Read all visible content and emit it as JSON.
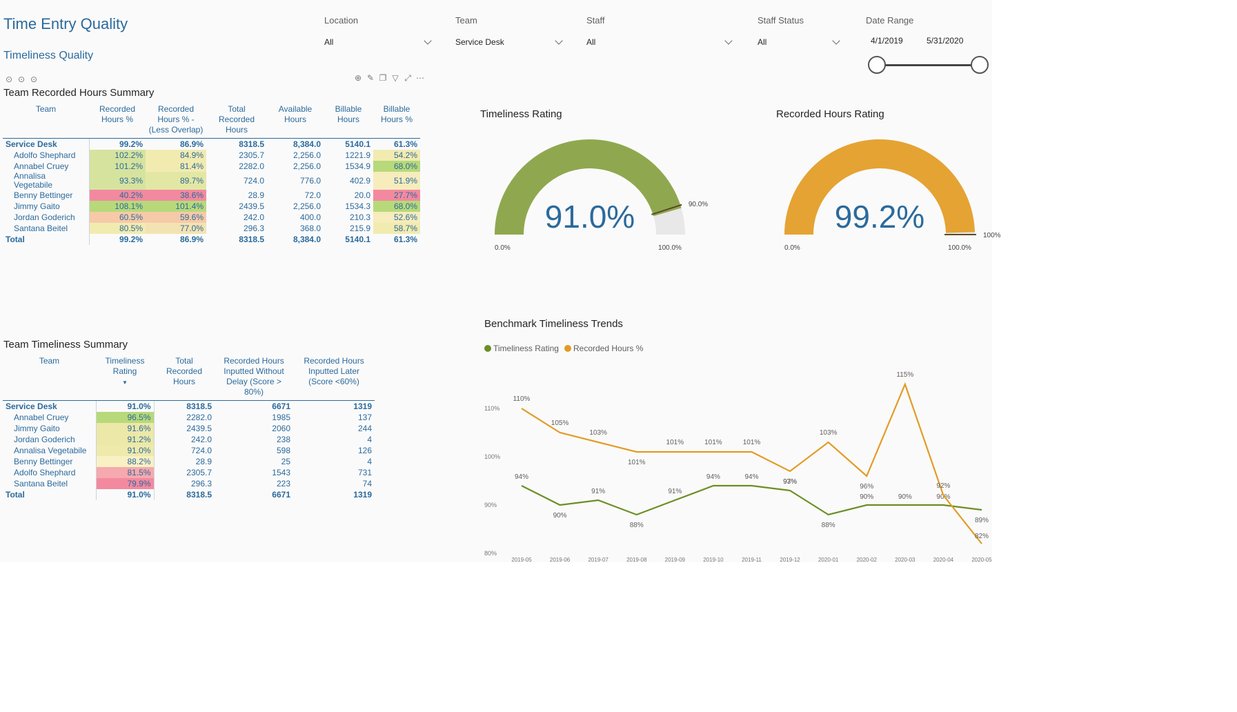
{
  "page": {
    "title": "Time Entry Quality",
    "subtitle": "Timeliness Quality"
  },
  "slicers": {
    "location": {
      "label": "Location",
      "value": "All"
    },
    "team": {
      "label": "Team",
      "value": "Service Desk"
    },
    "staff": {
      "label": "Staff",
      "value": "All"
    },
    "staff_status": {
      "label": "Staff Status",
      "value": "All"
    },
    "date_range": {
      "label": "Date Range",
      "start": "4/1/2019",
      "end": "5/31/2020"
    }
  },
  "recorded_summary": {
    "title": "Team Recorded Hours Summary",
    "headers": [
      "Team",
      "Recorded Hours %",
      "Recorded Hours % - (Less Overlap)",
      "Total Recorded Hours",
      "Available Hours",
      "Billable Hours",
      "Billable Hours %"
    ],
    "group": {
      "name": "Service Desk",
      "cells": [
        "99.2%",
        "86.9%",
        "8318.5",
        "8,384.0",
        "5140.1",
        "61.3%"
      ]
    },
    "rows": [
      {
        "name": "Adolfo Shephard",
        "cells": [
          "102.2%",
          "84.9%",
          "2305.7",
          "2,256.0",
          "1221.9",
          "54.2%"
        ],
        "colors": [
          "#d6e39e",
          "#f2ebb0",
          "",
          "",
          "",
          "#f2ebb0"
        ]
      },
      {
        "name": "Annabel Cruey",
        "cells": [
          "101.2%",
          "81.4%",
          "2282.0",
          "2,256.0",
          "1534.9",
          "68.0%"
        ],
        "colors": [
          "#d6e39e",
          "#f2ebb0",
          "",
          "",
          "",
          "#b7d97a"
        ]
      },
      {
        "name": "Annalisa Vegetabile",
        "cells": [
          "93.3%",
          "89.7%",
          "724.0",
          "776.0",
          "402.9",
          "51.9%"
        ],
        "colors": [
          "#d6e39e",
          "#e3e7a4",
          "",
          "",
          "",
          "#f6ecbc"
        ]
      },
      {
        "name": "Benny Bettinger",
        "cells": [
          "40.2%",
          "38.6%",
          "28.9",
          "72.0",
          "20.0",
          "27.7%"
        ],
        "colors": [
          "#f3899f",
          "#f3899f",
          "",
          "",
          "",
          "#f3899f"
        ]
      },
      {
        "name": "Jimmy Gaito",
        "cells": [
          "108.1%",
          "101.4%",
          "2439.5",
          "2,256.0",
          "1534.3",
          "68.0%"
        ],
        "colors": [
          "#b7d97a",
          "#b7d97a",
          "",
          "",
          "",
          "#b7d97a"
        ]
      },
      {
        "name": "Jordan Goderich",
        "cells": [
          "60.5%",
          "59.6%",
          "242.0",
          "400.0",
          "210.3",
          "52.6%"
        ],
        "colors": [
          "#f6caa8",
          "#f6caa8",
          "",
          "",
          "",
          "#f6ecbc"
        ]
      },
      {
        "name": "Santana Beitel",
        "cells": [
          "80.5%",
          "77.0%",
          "296.3",
          "368.0",
          "215.9",
          "58.7%"
        ],
        "colors": [
          "#f2ebb0",
          "#f4e3b2",
          "",
          "",
          "",
          "#f2ebb0"
        ]
      }
    ],
    "total": {
      "name": "Total",
      "cells": [
        "99.2%",
        "86.9%",
        "8318.5",
        "8,384.0",
        "5140.1",
        "61.3%"
      ]
    }
  },
  "timeliness_summary": {
    "title": "Team Timeliness Summary",
    "headers": [
      "Team",
      "Timeliness Rating",
      "Total Recorded Hours",
      "Recorded Hours Inputted Without Delay (Score > 80%)",
      "Recorded Hours Inputted Later (Score <60%)"
    ],
    "group": {
      "name": "Service Desk",
      "cells": [
        "91.0%",
        "8318.5",
        "6671",
        "1319"
      ]
    },
    "rows": [
      {
        "name": "Annabel Cruey",
        "cells": [
          "96.5%",
          "2282.0",
          "1985",
          "137"
        ],
        "color": "#b7d97a"
      },
      {
        "name": "Jimmy Gaito",
        "cells": [
          "91.6%",
          "2439.5",
          "2060",
          "244"
        ],
        "color": "#ebe8a8"
      },
      {
        "name": "Jordan Goderich",
        "cells": [
          "91.2%",
          "242.0",
          "238",
          "4"
        ],
        "color": "#ebe8a8"
      },
      {
        "name": "Annalisa Vegetabile",
        "cells": [
          "91.0%",
          "724.0",
          "598",
          "126"
        ],
        "color": "#efe9ac"
      },
      {
        "name": "Benny Bettinger",
        "cells": [
          "88.2%",
          "28.9",
          "25",
          "4"
        ],
        "color": "#f9f0c4"
      },
      {
        "name": "Adolfo Shephard",
        "cells": [
          "81.5%",
          "2305.7",
          "1543",
          "731"
        ],
        "color": "#f6a9ae"
      },
      {
        "name": "Santana Beitel",
        "cells": [
          "79.9%",
          "296.3",
          "223",
          "74"
        ],
        "color": "#f3899f"
      }
    ],
    "total": {
      "name": "Total",
      "cells": [
        "91.0%",
        "8318.5",
        "6671",
        "1319"
      ]
    }
  },
  "chart_data": [
    {
      "type": "gauge",
      "title": "Timeliness Rating",
      "value": 91.0,
      "value_label": "91.0%",
      "min": 0,
      "max": 100,
      "min_label": "0.0%",
      "max_label": "100.0%",
      "target": 90,
      "target_label": "90.0%",
      "color": "#8fa84f"
    },
    {
      "type": "gauge",
      "title": "Recorded Hours Rating",
      "value": 99.2,
      "value_label": "99.2%",
      "min": 0,
      "max": 100,
      "min_label": "0.0%",
      "max_label": "100.0%",
      "target": 100,
      "target_label": "100%",
      "color": "#e5a333"
    },
    {
      "type": "line",
      "title": "Benchmark  Timeliness Trends",
      "legend_position": "top-left",
      "x": [
        "2019-05",
        "2019-06",
        "2019-07",
        "2019-08",
        "2019-09",
        "2019-10",
        "2019-11",
        "2019-12",
        "2020-01",
        "2020-02",
        "2020-03",
        "2020-04",
        "2020-05"
      ],
      "y_ticks": [
        "80%",
        "90%",
        "100%",
        "110%"
      ],
      "ylim": [
        80,
        116
      ],
      "series": [
        {
          "name": "Timeliness Rating",
          "color": "#6b8e23",
          "values": [
            94,
            90,
            91,
            88,
            91,
            94,
            94,
            93,
            88,
            90,
            90,
            90,
            89
          ],
          "labels": [
            "94%",
            "90%",
            "91%",
            "88%",
            "91%",
            "94%",
            "94%",
            "93%",
            "88%",
            "90%",
            "90%",
            "90%",
            "89%"
          ]
        },
        {
          "name": "Recorded Hours %",
          "color": "#e39b26",
          "values": [
            110,
            105,
            103,
            101,
            101,
            101,
            101,
            97,
            103,
            96,
            115,
            92,
            82
          ],
          "labels": [
            "110%",
            "105%",
            "103%",
            "101%",
            "101%",
            "101%",
            "101%",
            "97%",
            "103%",
            "96%",
            "115%",
            "92%",
            "82%"
          ]
        }
      ]
    }
  ]
}
